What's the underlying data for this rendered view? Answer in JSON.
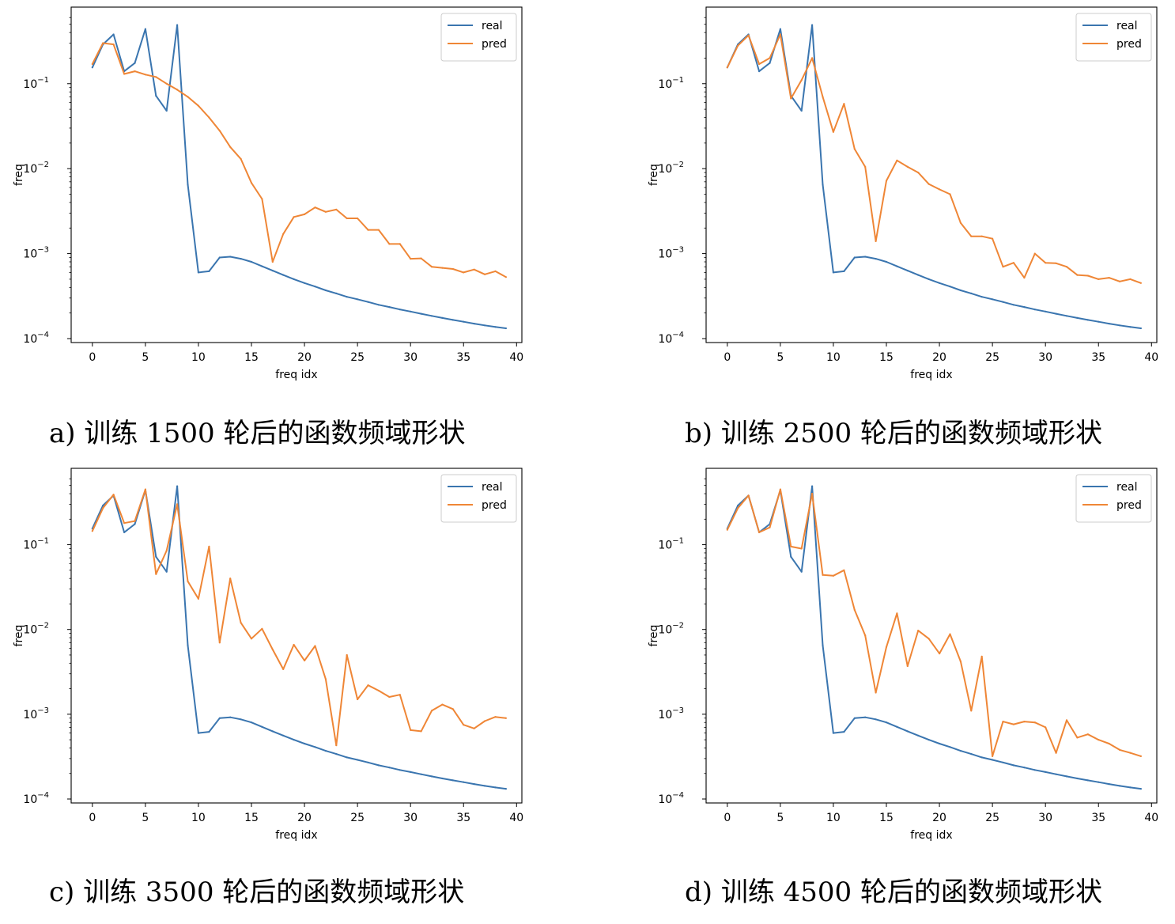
{
  "chart_data": [
    {
      "type": "line",
      "xlabel": "freq idx",
      "ylabel": "freq",
      "yscale": "log",
      "ylim": [
        0.0001,
        0.7
      ],
      "xlim": [
        -2,
        40.5
      ],
      "xticks": [
        "0",
        "5",
        "10",
        "15",
        "20",
        "25",
        "30",
        "35",
        "40"
      ],
      "yticks": [
        "10^-4",
        "10^-3",
        "10^-2",
        "10^-1"
      ],
      "legend": {
        "position": "top-right",
        "entries": [
          "real",
          "pred"
        ]
      },
      "colors": {
        "real": "#3a75af",
        "pred": "#ef8636"
      },
      "caption": "a) 训练 1500 轮后的函数频域形状",
      "series": [
        {
          "name": "real",
          "values": [
            0.155,
            0.29,
            0.38,
            0.14,
            0.175,
            0.44,
            0.072,
            0.048,
            0.49,
            0.0065,
            0.0006,
            0.00062,
            0.0009,
            0.00092,
            0.00087,
            0.0008,
            0.00071,
            0.00063,
            0.00056,
            0.0005,
            0.00045,
            0.00041,
            0.00037,
            0.00034,
            0.00031,
            0.00029,
            0.00027,
            0.00025,
            0.000235,
            0.00022,
            0.000208,
            0.000196,
            0.000185,
            0.000175,
            0.000166,
            0.000158,
            0.00015,
            0.000143,
            0.000137,
            0.000132
          ]
        },
        {
          "name": "pred",
          "values": [
            0.17,
            0.3,
            0.29,
            0.13,
            0.14,
            0.128,
            0.12,
            0.1,
            0.085,
            0.07,
            0.055,
            0.04,
            0.028,
            0.018,
            0.013,
            0.0068,
            0.0044,
            0.0008,
            0.0017,
            0.0027,
            0.0029,
            0.0035,
            0.0031,
            0.0033,
            0.0026,
            0.0026,
            0.0019,
            0.0019,
            0.0013,
            0.0013,
            0.00087,
            0.00088,
            0.0007,
            0.00068,
            0.00066,
            0.0006,
            0.00065,
            0.00057,
            0.00062,
            0.00053
          ]
        }
      ]
    },
    {
      "type": "line",
      "xlabel": "freq idx",
      "ylabel": "freq",
      "yscale": "log",
      "ylim": [
        0.0001,
        0.7
      ],
      "xlim": [
        -2,
        40.5
      ],
      "xticks": [
        "0",
        "5",
        "10",
        "15",
        "20",
        "25",
        "30",
        "35",
        "40"
      ],
      "yticks": [
        "10^-4",
        "10^-3",
        "10^-2",
        "10^-1"
      ],
      "legend": {
        "position": "top-right",
        "entries": [
          "real",
          "pred"
        ]
      },
      "colors": {
        "real": "#3a75af",
        "pred": "#ef8636"
      },
      "caption": "b) 训练 2500 轮后的函数频域形状",
      "series": [
        {
          "name": "real",
          "values": [
            0.155,
            0.29,
            0.38,
            0.14,
            0.175,
            0.44,
            0.072,
            0.048,
            0.49,
            0.0065,
            0.0006,
            0.00062,
            0.0009,
            0.00092,
            0.00087,
            0.0008,
            0.00071,
            0.00063,
            0.00056,
            0.0005,
            0.00045,
            0.00041,
            0.00037,
            0.00034,
            0.00031,
            0.00029,
            0.00027,
            0.00025,
            0.000235,
            0.00022,
            0.000208,
            0.000196,
            0.000185,
            0.000175,
            0.000166,
            0.000158,
            0.00015,
            0.000143,
            0.000137,
            0.000132
          ]
        },
        {
          "name": "pred",
          "values": [
            0.155,
            0.28,
            0.37,
            0.17,
            0.2,
            0.38,
            0.067,
            0.11,
            0.2,
            0.07,
            0.027,
            0.058,
            0.017,
            0.0105,
            0.0014,
            0.0072,
            0.0125,
            0.0105,
            0.009,
            0.0066,
            0.0057,
            0.005,
            0.0023,
            0.0016,
            0.0016,
            0.0015,
            0.0007,
            0.00078,
            0.00052,
            0.001,
            0.00078,
            0.00077,
            0.0007,
            0.00056,
            0.00055,
            0.0005,
            0.00052,
            0.00047,
            0.0005,
            0.00045
          ]
        }
      ]
    },
    {
      "type": "line",
      "xlabel": "freq idx",
      "ylabel": "freq",
      "yscale": "log",
      "ylim": [
        0.0001,
        0.7
      ],
      "xlim": [
        -2,
        40.5
      ],
      "xticks": [
        "0",
        "5",
        "10",
        "15",
        "20",
        "25",
        "30",
        "35",
        "40"
      ],
      "yticks": [
        "10^-4",
        "10^-3",
        "10^-2",
        "10^-1"
      ],
      "legend": {
        "position": "top-right",
        "entries": [
          "real",
          "pred"
        ]
      },
      "colors": {
        "real": "#3a75af",
        "pred": "#ef8636"
      },
      "caption": "c) 训练 3500 轮后的函数频域形状",
      "series": [
        {
          "name": "real",
          "values": [
            0.155,
            0.29,
            0.38,
            0.14,
            0.175,
            0.44,
            0.072,
            0.048,
            0.49,
            0.0065,
            0.0006,
            0.00062,
            0.0009,
            0.00092,
            0.00087,
            0.0008,
            0.00071,
            0.00063,
            0.00056,
            0.0005,
            0.00045,
            0.00041,
            0.00037,
            0.00034,
            0.00031,
            0.00029,
            0.00027,
            0.00025,
            0.000235,
            0.00022,
            0.000208,
            0.000196,
            0.000185,
            0.000175,
            0.000166,
            0.000158,
            0.00015,
            0.000143,
            0.000137,
            0.000132
          ]
        },
        {
          "name": "pred",
          "values": [
            0.145,
            0.27,
            0.39,
            0.18,
            0.19,
            0.45,
            0.045,
            0.085,
            0.3,
            0.037,
            0.023,
            0.095,
            0.007,
            0.04,
            0.012,
            0.0078,
            0.0102,
            0.0058,
            0.0034,
            0.0066,
            0.0043,
            0.0064,
            0.0026,
            0.00043,
            0.005,
            0.0015,
            0.0022,
            0.0019,
            0.0016,
            0.0017,
            0.00065,
            0.00063,
            0.0011,
            0.0013,
            0.00115,
            0.00075,
            0.00068,
            0.00083,
            0.00093,
            0.0009
          ]
        }
      ]
    },
    {
      "type": "line",
      "xlabel": "freq idx",
      "ylabel": "freq",
      "yscale": "log",
      "ylim": [
        0.0001,
        0.7
      ],
      "xlim": [
        -2,
        40.5
      ],
      "xticks": [
        "0",
        "5",
        "10",
        "15",
        "20",
        "25",
        "30",
        "35",
        "40"
      ],
      "yticks": [
        "10^-4",
        "10^-3",
        "10^-2",
        "10^-1"
      ],
      "legend": {
        "position": "top-right",
        "entries": [
          "real",
          "pred"
        ]
      },
      "colors": {
        "real": "#3a75af",
        "pred": "#ef8636"
      },
      "caption": "d) 训练 4500 轮后的函数频域形状",
      "series": [
        {
          "name": "real",
          "values": [
            0.155,
            0.29,
            0.38,
            0.14,
            0.175,
            0.44,
            0.072,
            0.048,
            0.49,
            0.0065,
            0.0006,
            0.00062,
            0.0009,
            0.00092,
            0.00087,
            0.0008,
            0.00071,
            0.00063,
            0.00056,
            0.0005,
            0.00045,
            0.00041,
            0.00037,
            0.00034,
            0.00031,
            0.00029,
            0.00027,
            0.00025,
            0.000235,
            0.00022,
            0.000208,
            0.000196,
            0.000185,
            0.000175,
            0.000166,
            0.000158,
            0.00015,
            0.000143,
            0.000137,
            0.000132
          ]
        },
        {
          "name": "pred",
          "values": [
            0.15,
            0.27,
            0.38,
            0.14,
            0.16,
            0.45,
            0.095,
            0.09,
            0.4,
            0.044,
            0.043,
            0.05,
            0.017,
            0.0085,
            0.0018,
            0.0062,
            0.0155,
            0.0037,
            0.0097,
            0.0078,
            0.0052,
            0.0088,
            0.0042,
            0.0011,
            0.0048,
            0.00032,
            0.00082,
            0.00076,
            0.00082,
            0.0008,
            0.0007,
            0.00035,
            0.00085,
            0.00053,
            0.00058,
            0.0005,
            0.00045,
            0.00038,
            0.00035,
            0.00032
          ]
        }
      ]
    }
  ]
}
